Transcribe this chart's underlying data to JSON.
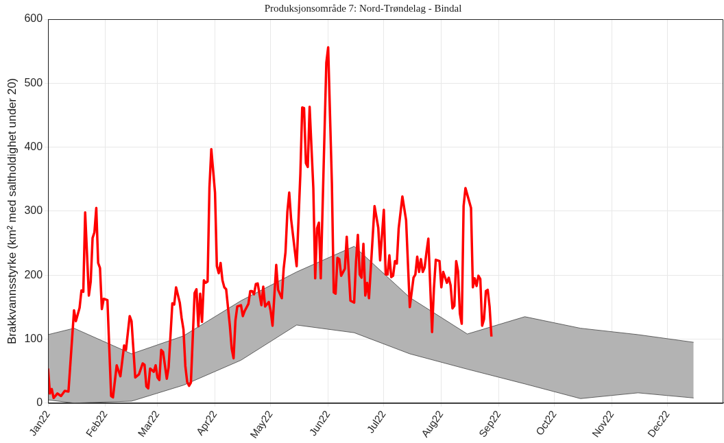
{
  "chart_data": {
    "type": "line",
    "title": "Produksjonsområde 7: Nord-Trøndelag - Bindal",
    "ylabel": "Brakkvannsstyrke (km² med saltholdighet under 20)",
    "xlim": [
      "2022-01-01",
      "2022-12-31"
    ],
    "xticks": [
      {
        "value": "2022-01-01",
        "label": "Jan22"
      },
      {
        "value": "2022-02-01",
        "label": "Feb22"
      },
      {
        "value": "2022-03-01",
        "label": "Mar22"
      },
      {
        "value": "2022-04-01",
        "label": "Apr22"
      },
      {
        "value": "2022-05-01",
        "label": "May22"
      },
      {
        "value": "2022-06-01",
        "label": "Jun22"
      },
      {
        "value": "2022-07-01",
        "label": "Jul22"
      },
      {
        "value": "2022-08-01",
        "label": "Aug22"
      },
      {
        "value": "2022-09-01",
        "label": "Sep22"
      },
      {
        "value": "2022-10-01",
        "label": "Oct22"
      },
      {
        "value": "2022-11-01",
        "label": "Nov22"
      },
      {
        "value": "2022-12-01",
        "label": "Dec22"
      }
    ],
    "ylim": [
      0,
      600
    ],
    "yticks": [
      0,
      100,
      200,
      300,
      400,
      500,
      600
    ],
    "grid": true,
    "legend": false,
    "series": [
      {
        "type": "area",
        "color": "#b3b3b3",
        "x": [
          "2022-01-01",
          "2022-01-15",
          "2022-02-15",
          "2022-03-15",
          "2022-04-15",
          "2022-05-15",
          "2022-06-15",
          "2022-07-15",
          "2022-08-15",
          "2022-09-15",
          "2022-10-15",
          "2022-11-15",
          "2022-12-15"
        ],
        "values": [
          107,
          117,
          77,
          105,
          160,
          205,
          245,
          165,
          108,
          135,
          117,
          107,
          95
        ]
      },
      {
        "type": "line",
        "color": "#404040",
        "x": [
          "2022-01-01",
          "2022-01-15",
          "2022-02-15",
          "2022-03-15",
          "2022-04-15",
          "2022-05-15",
          "2022-06-15",
          "2022-07-15",
          "2022-08-15",
          "2022-09-15",
          "2022-10-15",
          "2022-11-15",
          "2022-12-15"
        ],
        "values": [
          5,
          0,
          3,
          28,
          67,
          122,
          110,
          77,
          53,
          30,
          7,
          16,
          8
        ]
      },
      {
        "type": "line",
        "color": "#ff0000",
        "x": [
          "2022-01-01",
          "2022-01-02",
          "2022-01-03",
          "2022-01-04",
          "2022-01-06",
          "2022-01-08",
          "2022-01-10",
          "2022-01-12",
          "2022-01-15",
          "2022-01-16",
          "2022-01-18",
          "2022-01-19",
          "2022-01-20",
          "2022-01-21",
          "2022-01-23",
          "2022-01-24",
          "2022-01-25",
          "2022-01-26",
          "2022-01-27",
          "2022-01-28",
          "2022-01-29",
          "2022-01-30",
          "2022-01-31",
          "2022-02-02",
          "2022-02-04",
          "2022-02-05",
          "2022-02-07",
          "2022-02-09",
          "2022-02-11",
          "2022-02-12",
          "2022-02-14",
          "2022-02-15",
          "2022-02-17",
          "2022-02-19",
          "2022-02-21",
          "2022-02-22",
          "2022-02-23",
          "2022-02-24",
          "2022-02-25",
          "2022-02-27",
          "2022-02-28",
          "2022-03-01",
          "2022-03-02",
          "2022-03-03",
          "2022-03-04",
          "2022-03-06",
          "2022-03-07",
          "2022-03-09",
          "2022-03-10",
          "2022-03-11",
          "2022-03-13",
          "2022-03-14",
          "2022-03-15",
          "2022-03-16",
          "2022-03-17",
          "2022-03-18",
          "2022-03-19",
          "2022-03-21",
          "2022-03-22",
          "2022-03-23",
          "2022-03-24",
          "2022-03-25",
          "2022-03-26",
          "2022-03-27",
          "2022-03-28",
          "2022-03-29",
          "2022-03-30",
          "2022-04-01",
          "2022-04-02",
          "2022-04-03",
          "2022-04-04",
          "2022-04-05",
          "2022-04-06",
          "2022-04-07",
          "2022-04-09",
          "2022-04-10",
          "2022-04-11",
          "2022-04-12",
          "2022-04-13",
          "2022-04-15",
          "2022-04-16",
          "2022-04-17",
          "2022-04-19",
          "2022-04-20",
          "2022-04-21",
          "2022-04-22",
          "2022-04-23",
          "2022-04-24",
          "2022-04-26",
          "2022-04-27",
          "2022-04-28",
          "2022-04-30",
          "2022-05-01",
          "2022-05-02",
          "2022-05-04",
          "2022-05-05",
          "2022-05-07",
          "2022-05-08",
          "2022-05-09",
          "2022-05-10",
          "2022-05-11",
          "2022-05-12",
          "2022-05-15",
          "2022-05-17",
          "2022-05-18",
          "2022-05-19",
          "2022-05-20",
          "2022-05-21",
          "2022-05-22",
          "2022-05-24",
          "2022-05-25",
          "2022-05-26",
          "2022-05-27",
          "2022-05-28",
          "2022-05-31",
          "2022-06-01",
          "2022-06-03",
          "2022-06-04",
          "2022-06-05",
          "2022-06-06",
          "2022-06-07",
          "2022-06-08",
          "2022-06-10",
          "2022-06-11",
          "2022-06-13",
          "2022-06-15",
          "2022-06-16",
          "2022-06-17",
          "2022-06-18",
          "2022-06-19",
          "2022-06-20",
          "2022-06-21",
          "2022-06-22",
          "2022-06-23",
          "2022-06-26",
          "2022-06-28",
          "2022-06-29",
          "2022-07-01",
          "2022-07-02",
          "2022-07-03",
          "2022-07-04",
          "2022-07-05",
          "2022-07-06",
          "2022-07-07",
          "2022-07-08",
          "2022-07-09",
          "2022-07-11",
          "2022-07-13",
          "2022-07-15",
          "2022-07-17",
          "2022-07-18",
          "2022-07-19",
          "2022-07-20",
          "2022-07-21",
          "2022-07-22",
          "2022-07-23",
          "2022-07-24",
          "2022-07-25",
          "2022-07-27",
          "2022-07-28",
          "2022-07-29",
          "2022-07-31",
          "2022-08-01",
          "2022-08-02",
          "2022-08-04",
          "2022-08-05",
          "2022-08-06",
          "2022-08-07",
          "2022-08-08",
          "2022-08-09",
          "2022-08-10",
          "2022-08-11",
          "2022-08-12",
          "2022-08-13",
          "2022-08-14",
          "2022-08-17",
          "2022-08-18",
          "2022-08-19",
          "2022-08-20",
          "2022-08-21",
          "2022-08-22",
          "2022-08-23",
          "2022-08-24",
          "2022-08-25",
          "2022-08-26",
          "2022-08-27",
          "2022-08-28"
        ],
        "values": [
          54,
          15,
          22,
          8,
          15,
          11,
          19,
          18,
          145,
          128,
          149,
          176,
          174,
          298,
          168,
          190,
          258,
          267,
          305,
          219,
          211,
          147,
          163,
          161,
          11,
          9,
          59,
          42,
          90,
          83,
          136,
          128,
          40,
          45,
          62,
          60,
          26,
          23,
          54,
          49,
          59,
          40,
          36,
          83,
          80,
          38,
          56,
          156,
          154,
          181,
          157,
          133,
          115,
          58,
          33,
          27,
          32,
          172,
          178,
          120,
          171,
          127,
          192,
          188,
          190,
          337,
          397,
          329,
          214,
          203,
          219,
          192,
          181,
          178,
          121,
          85,
          70,
          129,
          151,
          153,
          136,
          144,
          155,
          175,
          175,
          170,
          186,
          187,
          153,
          182,
          151,
          158,
          144,
          121,
          216,
          177,
          164,
          210,
          236,
          299,
          329,
          288,
          214,
          358,
          462,
          461,
          375,
          369,
          463,
          336,
          195,
          273,
          282,
          195,
          532,
          556,
          343,
          173,
          171,
          227,
          225,
          199,
          210,
          260,
          160,
          157,
          221,
          263,
          201,
          196,
          249,
          168,
          188,
          164,
          308,
          274,
          223,
          302,
          201,
          201,
          231,
          197,
          199,
          222,
          218,
          273,
          323,
          286,
          150,
          196,
          201,
          229,
          205,
          225,
          205,
          212,
          236,
          257,
          111,
          179,
          224,
          222,
          181,
          205,
          188,
          196,
          184,
          148,
          152,
          222,
          206,
          140,
          124,
          308,
          336,
          305,
          181,
          195,
          183,
          199,
          194,
          121,
          131,
          175,
          177,
          151,
          104
        ]
      }
    ]
  }
}
